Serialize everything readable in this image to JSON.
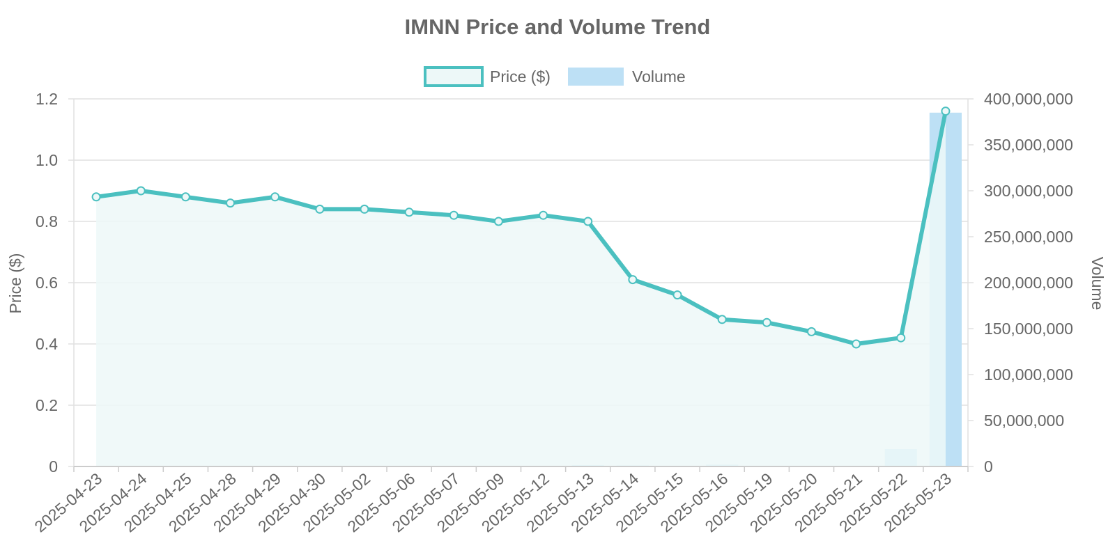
{
  "chart_data": {
    "type": "line",
    "title": "IMNN Price and Volume Trend",
    "categories": [
      "2025-04-23",
      "2025-04-24",
      "2025-04-25",
      "2025-04-28",
      "2025-04-29",
      "2025-04-30",
      "2025-05-02",
      "2025-05-06",
      "2025-05-07",
      "2025-05-09",
      "2025-05-12",
      "2025-05-13",
      "2025-05-14",
      "2025-05-15",
      "2025-05-16",
      "2025-05-19",
      "2025-05-20",
      "2025-05-21",
      "2025-05-22",
      "2025-05-23"
    ],
    "series": [
      {
        "name": "Price ($)",
        "type": "line",
        "axis": "left",
        "fill": true,
        "color": "#4bc0c0",
        "fill_color": "#edf8f8",
        "values": [
          0.88,
          0.9,
          0.88,
          0.86,
          0.88,
          0.84,
          0.84,
          0.83,
          0.82,
          0.8,
          0.82,
          0.8,
          0.61,
          0.56,
          0.48,
          0.47,
          0.44,
          0.4,
          0.42,
          1.16
        ]
      },
      {
        "name": "Volume",
        "type": "bar",
        "axis": "right",
        "color": "#bde0f5",
        "values": [
          150000,
          120000,
          100000,
          90000,
          110000,
          200000,
          130000,
          100000,
          90000,
          120000,
          150000,
          1500000,
          1200000,
          800000,
          2000000,
          600000,
          500000,
          400000,
          19000000,
          385000000
        ]
      }
    ],
    "y_left": {
      "label": "Price ($)",
      "min": 0,
      "max": 1.2,
      "ticks": [
        "0",
        "0.2",
        "0.4",
        "0.6",
        "0.8",
        "1.0",
        "1.2"
      ]
    },
    "y_right": {
      "label": "Volume",
      "min": 0,
      "max": 400000000,
      "ticks": [
        "0",
        "50,000,000",
        "100,000,000",
        "150,000,000",
        "200,000,000",
        "250,000,000",
        "300,000,000",
        "350,000,000",
        "400,000,000"
      ]
    },
    "grid": true,
    "legend": {
      "position": "top",
      "entries": [
        "Price ($)",
        "Volume"
      ]
    }
  }
}
